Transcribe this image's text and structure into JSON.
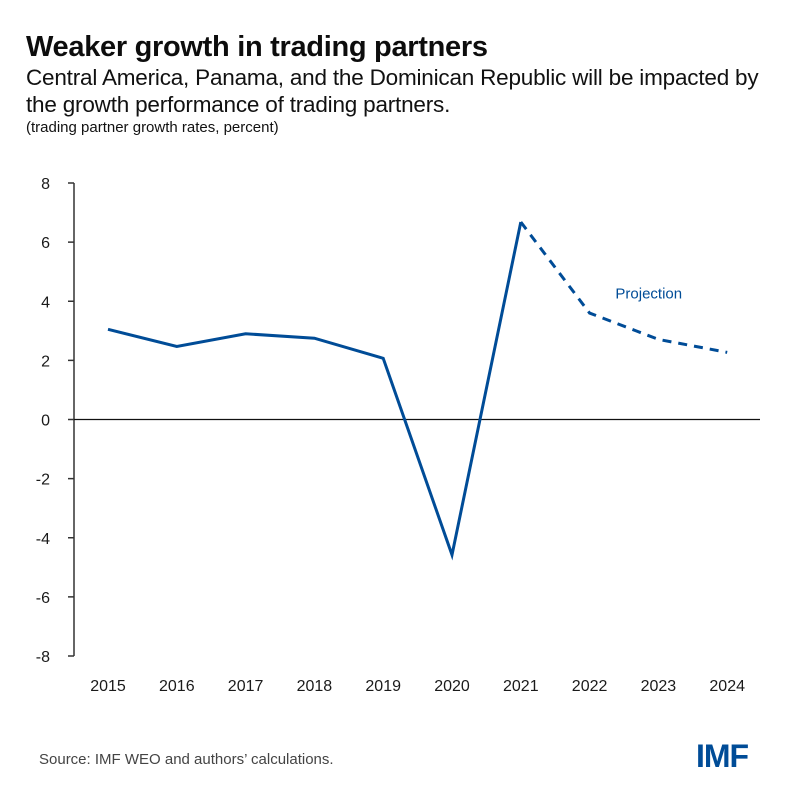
{
  "header": {
    "title": "Weaker growth in trading partners",
    "subtitle": "Central America, Panama, and the Dominican Republic will be impacted by the growth performance of trading partners.",
    "unit_note": "(trading partner growth rates, percent)"
  },
  "footer": {
    "source": "Source: IMF WEO and authors’ calculations.",
    "logo": "IMF"
  },
  "colors": {
    "series": "#004c97",
    "axis": "#333333",
    "zero_line": "#111111"
  },
  "chart_data": {
    "type": "line",
    "title": "Weaker growth in trading partners",
    "xlabel": "",
    "ylabel": "trading partner growth rates, percent",
    "categories": [
      "2015",
      "2016",
      "2017",
      "2018",
      "2019",
      "2020",
      "2021",
      "2022",
      "2023",
      "2024"
    ],
    "ylim": [
      -8,
      8
    ],
    "yticks": [
      8,
      6,
      4,
      2,
      0,
      -2,
      -4,
      -6,
      -8
    ],
    "ytick_labels": [
      "8",
      "6",
      "4",
      "2",
      "0",
      "-2",
      "-4",
      "-6",
      "-8"
    ],
    "grid": false,
    "zero_line": true,
    "series": [
      {
        "name": "Trading partner growth",
        "values": [
          3.05,
          2.47,
          2.9,
          2.75,
          2.07,
          -4.58,
          6.68,
          3.6,
          2.71,
          2.27
        ],
        "projection_start_index": 6,
        "style_actual": "solid",
        "style_projection": "dashed"
      }
    ],
    "annotations": [
      {
        "text": "Projection",
        "near_category": "2023",
        "near_value": 4.2
      }
    ],
    "legend": "none"
  }
}
